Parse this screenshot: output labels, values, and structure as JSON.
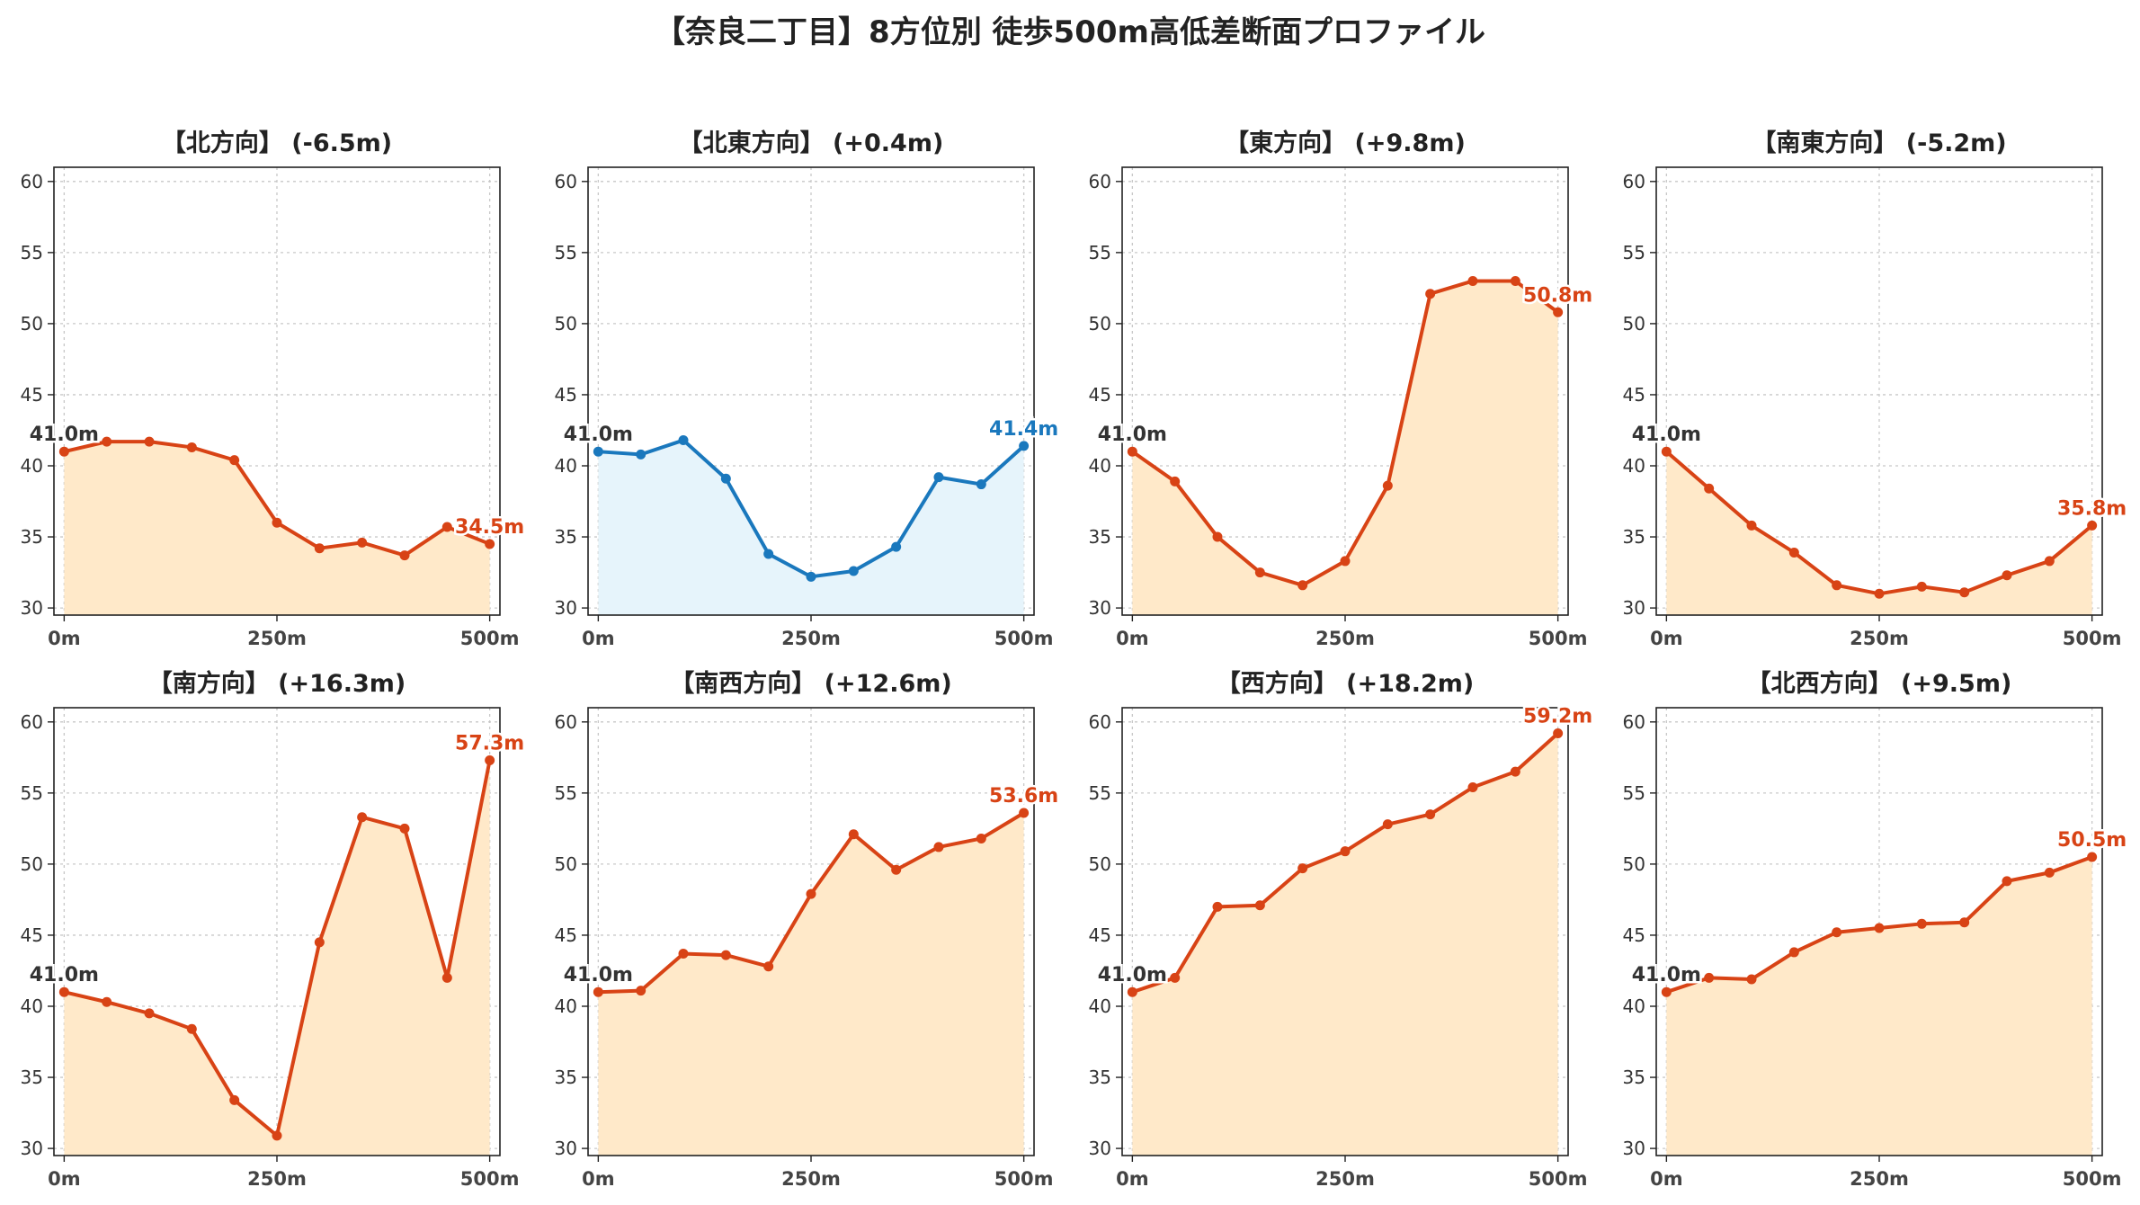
{
  "figure_title": "【奈良二丁目】8方位別 徒歩500m高低差断面プロファイル",
  "colors": {
    "up_line": "#d84315",
    "up_fill": "#ffe9c9",
    "flat_line": "#1a78bd",
    "flat_fill": "#e6f4fb",
    "start_label": "#333333",
    "grid": "#c8c8c8",
    "axis": "#222222"
  },
  "chart_data": [
    {
      "type": "area",
      "title": "【北方向】 (-6.5m)",
      "style": "warm",
      "x": [
        0,
        50,
        100,
        150,
        200,
        250,
        300,
        350,
        400,
        450,
        500
      ],
      "y": [
        41.0,
        41.7,
        41.7,
        41.3,
        40.4,
        36.0,
        34.2,
        34.6,
        33.7,
        35.7,
        34.5
      ],
      "start_label": "41.0m",
      "end_label": "34.5m",
      "xticks": [
        "0m",
        "250m",
        "500m"
      ],
      "yticks": [
        30,
        35,
        40,
        45,
        50,
        55,
        60
      ],
      "xlim": [
        -12,
        512
      ],
      "ylim": [
        29.5,
        61
      ],
      "grid": true
    },
    {
      "type": "area",
      "title": "【北東方向】 (+0.4m)",
      "style": "flat",
      "x": [
        0,
        50,
        100,
        150,
        200,
        250,
        300,
        350,
        400,
        450,
        500
      ],
      "y": [
        41.0,
        40.8,
        41.8,
        39.1,
        33.8,
        32.2,
        32.6,
        34.3,
        39.2,
        38.7,
        41.4
      ],
      "start_label": "41.0m",
      "end_label": "41.4m",
      "xticks": [
        "0m",
        "250m",
        "500m"
      ],
      "yticks": [
        30,
        35,
        40,
        45,
        50,
        55,
        60
      ],
      "xlim": [
        -12,
        512
      ],
      "ylim": [
        29.5,
        61
      ],
      "grid": true
    },
    {
      "type": "area",
      "title": "【東方向】 (+9.8m)",
      "style": "warm",
      "x": [
        0,
        50,
        100,
        150,
        200,
        250,
        300,
        350,
        400,
        450,
        500
      ],
      "y": [
        41.0,
        38.9,
        35.0,
        32.5,
        31.6,
        33.3,
        38.6,
        52.1,
        53.0,
        53.0,
        50.8
      ],
      "start_label": "41.0m",
      "end_label": "50.8m",
      "xticks": [
        "0m",
        "250m",
        "500m"
      ],
      "yticks": [
        30,
        35,
        40,
        45,
        50,
        55,
        60
      ],
      "xlim": [
        -12,
        512
      ],
      "ylim": [
        29.5,
        61
      ],
      "grid": true
    },
    {
      "type": "area",
      "title": "【南東方向】 (-5.2m)",
      "style": "warm",
      "x": [
        0,
        50,
        100,
        150,
        200,
        250,
        300,
        350,
        400,
        450,
        500
      ],
      "y": [
        41.0,
        38.4,
        35.8,
        33.9,
        31.6,
        31.0,
        31.5,
        31.1,
        32.3,
        33.3,
        35.8
      ],
      "start_label": "41.0m",
      "end_label": "35.8m",
      "xticks": [
        "0m",
        "250m",
        "500m"
      ],
      "yticks": [
        30,
        35,
        40,
        45,
        50,
        55,
        60
      ],
      "xlim": [
        -12,
        512
      ],
      "ylim": [
        29.5,
        61
      ],
      "grid": true
    },
    {
      "type": "area",
      "title": "【南方向】 (+16.3m)",
      "style": "warm",
      "x": [
        0,
        50,
        100,
        150,
        200,
        250,
        300,
        350,
        400,
        450,
        500
      ],
      "y": [
        41.0,
        40.3,
        39.5,
        38.4,
        33.4,
        30.9,
        44.5,
        53.3,
        52.5,
        42.0,
        57.3
      ],
      "start_label": "41.0m",
      "end_label": "57.3m",
      "xticks": [
        "0m",
        "250m",
        "500m"
      ],
      "yticks": [
        30,
        35,
        40,
        45,
        50,
        55,
        60
      ],
      "xlim": [
        -12,
        512
      ],
      "ylim": [
        29.5,
        61
      ],
      "grid": true
    },
    {
      "type": "area",
      "title": "【南西方向】 (+12.6m)",
      "style": "warm",
      "x": [
        0,
        50,
        100,
        150,
        200,
        250,
        300,
        350,
        400,
        450,
        500
      ],
      "y": [
        41.0,
        41.1,
        43.7,
        43.6,
        42.8,
        47.9,
        52.1,
        49.6,
        51.2,
        51.8,
        53.6
      ],
      "start_label": "41.0m",
      "end_label": "53.6m",
      "xticks": [
        "0m",
        "250m",
        "500m"
      ],
      "yticks": [
        30,
        35,
        40,
        45,
        50,
        55,
        60
      ],
      "xlim": [
        -12,
        512
      ],
      "ylim": [
        29.5,
        61
      ],
      "grid": true
    },
    {
      "type": "area",
      "title": "【西方向】 (+18.2m)",
      "style": "warm",
      "x": [
        0,
        50,
        100,
        150,
        200,
        250,
        300,
        350,
        400,
        450,
        500
      ],
      "y": [
        41.0,
        42.0,
        47.0,
        47.1,
        49.7,
        50.9,
        52.8,
        53.5,
        55.4,
        56.5,
        59.2
      ],
      "start_label": "41.0m",
      "end_label": "59.2m",
      "xticks": [
        "0m",
        "250m",
        "500m"
      ],
      "yticks": [
        30,
        35,
        40,
        45,
        50,
        55,
        60
      ],
      "xlim": [
        -12,
        512
      ],
      "ylim": [
        29.5,
        61
      ],
      "grid": true
    },
    {
      "type": "area",
      "title": "【北西方向】 (+9.5m)",
      "style": "warm",
      "x": [
        0,
        50,
        100,
        150,
        200,
        250,
        300,
        350,
        400,
        450,
        500
      ],
      "y": [
        41.0,
        42.0,
        41.9,
        43.8,
        45.2,
        45.5,
        45.8,
        45.9,
        48.8,
        49.4,
        50.5
      ],
      "start_label": "41.0m",
      "end_label": "50.5m",
      "xticks": [
        "0m",
        "250m",
        "500m"
      ],
      "yticks": [
        30,
        35,
        40,
        45,
        50,
        55,
        60
      ],
      "xlim": [
        -12,
        512
      ],
      "ylim": [
        29.5,
        61
      ],
      "grid": true
    }
  ]
}
